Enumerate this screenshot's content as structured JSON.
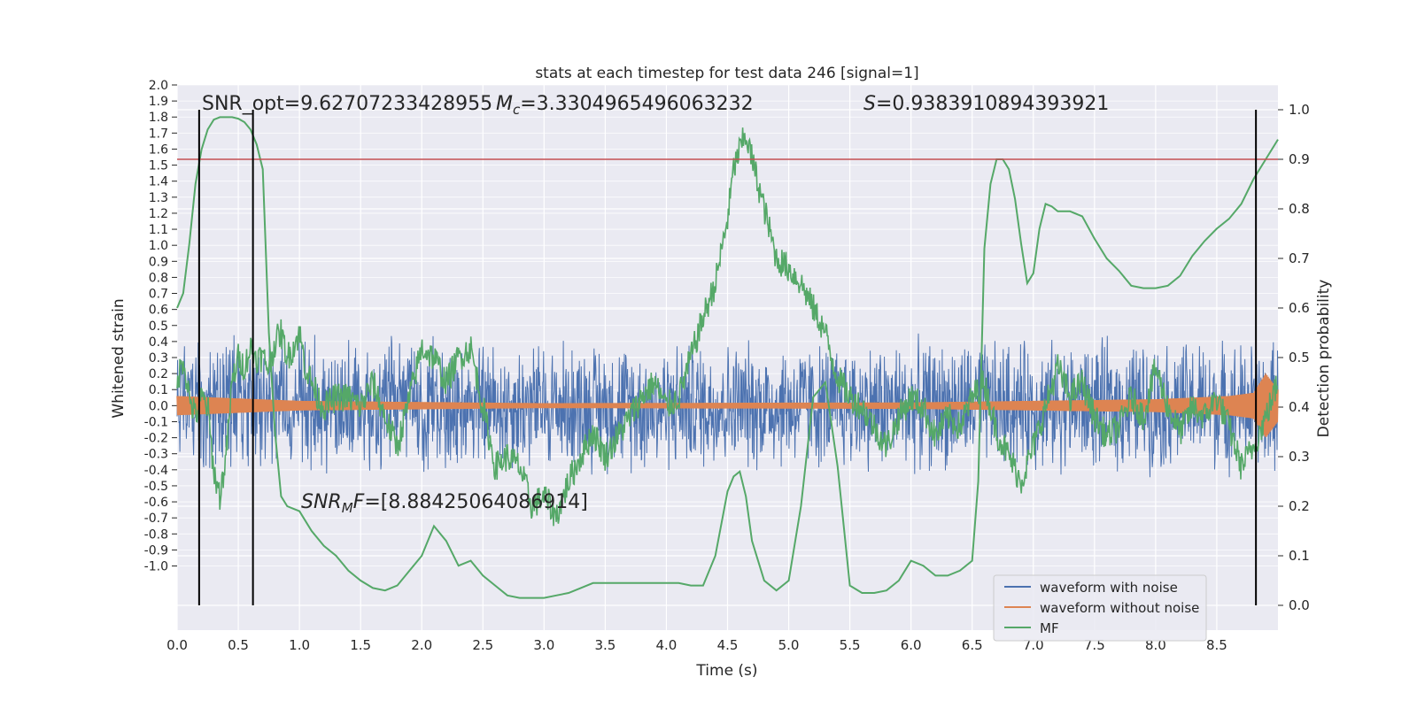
{
  "chart_data": {
    "type": "line",
    "title": "stats at each timestep for test data 246 [signal=1]",
    "xlabel": "Time (s)",
    "ylabel_left": "Whitened strain",
    "ylabel_right": "Detection probability",
    "xlim": [
      0,
      9
    ],
    "ylim_left": [
      -1.4,
      2.0
    ],
    "ylim_right": [
      -0.05,
      1.05
    ],
    "x_ticks": [
      "0.0",
      "0.5",
      "1.0",
      "1.5",
      "2.0",
      "2.5",
      "3.0",
      "3.5",
      "4.0",
      "4.5",
      "5.0",
      "5.5",
      "6.0",
      "6.5",
      "7.0",
      "7.5",
      "8.0",
      "8.5"
    ],
    "y_ticks_left": [
      "-1.0",
      "-0.9",
      "-0.8",
      "-0.7",
      "-0.6",
      "-0.5",
      "-0.4",
      "-0.3",
      "-0.2",
      "-0.1",
      "0.0",
      "0.1",
      "0.2",
      "0.3",
      "0.4",
      "0.5",
      "0.6",
      "0.7",
      "0.8",
      "0.9",
      "1.0",
      "1.1",
      "1.2",
      "1.3",
      "1.4",
      "1.5",
      "1.6",
      "1.7",
      "1.8",
      "1.9",
      "2.0"
    ],
    "y_ticks_right": [
      "0.0",
      "0.1",
      "0.2",
      "0.3",
      "0.4",
      "0.5",
      "0.6",
      "0.7",
      "0.8",
      "0.9",
      "1.0"
    ],
    "grid": true,
    "legend_position": "lower-right",
    "annotations": {
      "snr_opt": "SNR_opt=9.62707233428955",
      "mc_symbol": "M",
      "mc_sub": "c",
      "mc_value": "=3.3304965496063232",
      "s_symbol": "S",
      "s_value": "=0.9383910894393921",
      "snrmf_symbol": "SNR",
      "snrmf_sub": "M",
      "snrmf_tail": "F",
      "snrmf_value": "=[8.88425064086914]"
    },
    "threshold": 0.9,
    "vertical_lines": [
      0.18,
      0.62,
      8.82
    ],
    "series": [
      {
        "name": "waveform with noise",
        "color": "#4c72b0",
        "axis": "left",
        "amplitude": 0.35
      },
      {
        "name": "waveform without noise",
        "color": "#dd8452",
        "axis": "left",
        "envelope_x": [
          0,
          0.5,
          1.0,
          3.0,
          6.0,
          8.0,
          8.6,
          8.8,
          8.9,
          9.0
        ],
        "envelope_y": [
          0.06,
          0.045,
          0.03,
          0.015,
          0.02,
          0.04,
          0.06,
          0.08,
          0.2,
          0.1
        ]
      },
      {
        "name": "MF",
        "color": "#55a868",
        "axis": "right",
        "x": [
          0.0,
          0.05,
          0.1,
          0.15,
          0.2,
          0.25,
          0.3,
          0.35,
          0.4,
          0.45,
          0.5,
          0.55,
          0.6,
          0.65,
          0.7,
          0.75,
          0.8,
          0.85,
          0.9,
          0.95,
          1.0,
          1.05,
          1.1,
          1.2,
          1.3,
          1.4,
          1.5,
          1.6,
          1.7,
          1.8,
          1.9,
          2.0,
          2.1,
          2.2,
          2.3,
          2.4,
          2.5,
          2.6,
          2.7,
          2.8,
          2.9,
          3.0,
          3.1,
          3.2,
          3.3,
          3.4,
          3.5,
          3.6,
          3.7,
          3.8,
          3.9,
          4.0,
          4.1,
          4.2,
          4.3,
          4.4,
          4.5,
          4.55,
          4.6,
          4.65,
          4.7,
          4.8,
          4.9,
          5.0,
          5.1,
          5.2,
          5.3,
          5.4,
          5.5,
          5.6,
          5.7,
          5.8,
          5.9,
          6.0,
          6.1,
          6.2,
          6.3,
          6.4,
          6.5,
          6.55,
          6.6,
          6.65,
          6.7,
          6.75,
          6.8,
          6.85,
          6.9,
          6.95,
          7.0,
          7.05,
          7.1,
          7.15,
          7.2,
          7.25,
          7.3,
          7.4,
          7.5,
          7.6,
          7.7,
          7.8,
          7.9,
          8.0,
          8.1,
          8.2,
          8.3,
          8.4,
          8.5,
          8.6,
          8.7,
          8.8,
          8.9,
          9.0
        ],
        "y": [
          0.6,
          0.63,
          0.73,
          0.85,
          0.92,
          0.96,
          0.98,
          0.985,
          0.985,
          0.985,
          0.982,
          0.975,
          0.96,
          0.93,
          0.88,
          0.55,
          0.35,
          0.22,
          0.2,
          0.195,
          0.19,
          0.17,
          0.15,
          0.12,
          0.1,
          0.07,
          0.05,
          0.035,
          0.03,
          0.04,
          0.07,
          0.1,
          0.16,
          0.13,
          0.08,
          0.09,
          0.06,
          0.04,
          0.02,
          0.015,
          0.015,
          0.015,
          0.02,
          0.025,
          0.035,
          0.045,
          0.045,
          0.045,
          0.045,
          0.045,
          0.045,
          0.045,
          0.045,
          0.04,
          0.04,
          0.1,
          0.23,
          0.26,
          0.27,
          0.22,
          0.13,
          0.05,
          0.03,
          0.05,
          0.2,
          0.42,
          0.45,
          0.28,
          0.04,
          0.025,
          0.025,
          0.03,
          0.05,
          0.09,
          0.08,
          0.06,
          0.06,
          0.07,
          0.09,
          0.25,
          0.72,
          0.85,
          0.9,
          0.9,
          0.88,
          0.82,
          0.73,
          0.65,
          0.67,
          0.76,
          0.81,
          0.805,
          0.795,
          0.795,
          0.795,
          0.785,
          0.74,
          0.7,
          0.675,
          0.645,
          0.64,
          0.64,
          0.645,
          0.665,
          0.705,
          0.735,
          0.76,
          0.78,
          0.81,
          0.86,
          0.9,
          0.94
        ]
      },
      {
        "name": "",
        "color": "#55a868",
        "axis": "right",
        "x": [
          0.0,
          0.05,
          0.1,
          0.15,
          0.2,
          0.25,
          0.3,
          0.35,
          0.4,
          0.45,
          0.5,
          0.55,
          0.6,
          0.65,
          0.7,
          0.75,
          0.8,
          0.85,
          0.9,
          0.95,
          1.0,
          1.05,
          1.1,
          1.15,
          1.2,
          1.3,
          1.4,
          1.5,
          1.6,
          1.7,
          1.8,
          1.9,
          2.0,
          2.1,
          2.2,
          2.3,
          2.4,
          2.5,
          2.6,
          2.7,
          2.8,
          2.9,
          3.0,
          3.1,
          3.2,
          3.3,
          3.4,
          3.5,
          3.6,
          3.7,
          3.8,
          3.9,
          4.0,
          4.1,
          4.2,
          4.3,
          4.4,
          4.5,
          4.55,
          4.6,
          4.65,
          4.7,
          4.75,
          4.8,
          4.9,
          5.0,
          5.1,
          5.2,
          5.3,
          5.35,
          5.4,
          5.5,
          5.6,
          5.7,
          5.8,
          5.9,
          6.0,
          6.1,
          6.2,
          6.3,
          6.4,
          6.5,
          6.6,
          6.7,
          6.8,
          6.9,
          7.0,
          7.1,
          7.2,
          7.3,
          7.4,
          7.5,
          7.6,
          7.7,
          7.8,
          7.9,
          8.0,
          8.1,
          8.2,
          8.3,
          8.4,
          8.5,
          8.6,
          8.7,
          8.8,
          8.9,
          9.0
        ],
        "y": [
          0.45,
          0.5,
          0.42,
          0.38,
          0.42,
          0.4,
          0.27,
          0.22,
          0.3,
          0.45,
          0.5,
          0.48,
          0.52,
          0.5,
          0.5,
          0.48,
          0.53,
          0.55,
          0.5,
          0.52,
          0.55,
          0.48,
          0.45,
          0.42,
          0.4,
          0.42,
          0.42,
          0.4,
          0.45,
          0.38,
          0.32,
          0.42,
          0.52,
          0.5,
          0.45,
          0.5,
          0.52,
          0.4,
          0.28,
          0.3,
          0.28,
          0.2,
          0.22,
          0.18,
          0.25,
          0.3,
          0.35,
          0.3,
          0.34,
          0.38,
          0.42,
          0.45,
          0.4,
          0.42,
          0.5,
          0.58,
          0.65,
          0.78,
          0.88,
          0.92,
          0.95,
          0.9,
          0.85,
          0.8,
          0.7,
          0.68,
          0.65,
          0.6,
          0.55,
          0.5,
          0.46,
          0.42,
          0.4,
          0.36,
          0.32,
          0.38,
          0.42,
          0.4,
          0.34,
          0.38,
          0.36,
          0.42,
          0.45,
          0.35,
          0.3,
          0.25,
          0.32,
          0.4,
          0.48,
          0.42,
          0.45,
          0.38,
          0.34,
          0.36,
          0.42,
          0.38,
          0.48,
          0.4,
          0.35,
          0.4,
          0.38,
          0.42,
          0.36,
          0.28,
          0.32,
          0.38,
          0.45
        ]
      }
    ]
  }
}
